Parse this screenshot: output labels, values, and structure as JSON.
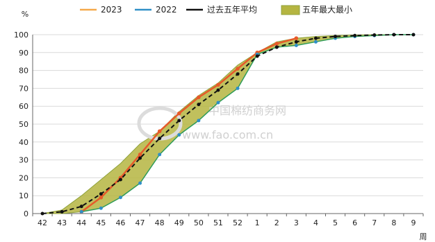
{
  "chart_data": {
    "type": "line",
    "y_unit": "%",
    "x_unit": "周",
    "categories": [
      "42",
      "43",
      "44",
      "45",
      "46",
      "47",
      "48",
      "49",
      "50",
      "51",
      "52",
      "1",
      "2",
      "3",
      "4",
      "5",
      "6",
      "7",
      "8",
      "9"
    ],
    "ylim": [
      0,
      100
    ],
    "y_ticks": [
      0,
      10,
      20,
      30,
      40,
      50,
      60,
      70,
      80,
      90,
      100
    ],
    "legend": {
      "placement": "top",
      "items": [
        {
          "label": "2023",
          "color": "#f5a94a",
          "kind": "line"
        },
        {
          "label": "2022",
          "color": "#2f8fc7",
          "kind": "line"
        },
        {
          "label": "过去五年平均",
          "color": "#111111",
          "kind": "line"
        },
        {
          "label": "五年最大最小",
          "color": "#b5b541",
          "kind": "band"
        }
      ]
    },
    "series": [
      {
        "name": "2023",
        "color": "#e65a2a",
        "values": [
          null,
          null,
          1,
          9,
          20,
          33,
          46,
          56,
          65,
          72,
          81,
          90,
          95,
          98,
          null,
          null,
          null,
          null,
          null,
          null
        ]
      },
      {
        "name": "2022",
        "color": "#2f8fc7",
        "values": [
          null,
          null,
          1,
          3,
          9,
          17,
          33,
          44,
          52,
          62,
          70,
          89,
          93,
          94,
          96,
          98,
          99,
          99.5,
          100,
          100
        ]
      },
      {
        "name": "过去五年平均",
        "color": "#111111",
        "values": [
          0,
          1,
          4,
          11,
          19,
          31,
          42,
          52,
          61,
          69,
          78,
          88,
          93,
          96,
          98,
          99,
          99.5,
          99.8,
          100,
          100
        ]
      }
    ],
    "band": {
      "name": "五年最大最小",
      "color": "#b5b541",
      "upper": [
        0,
        2,
        10,
        19,
        28,
        39,
        46,
        57,
        66,
        73,
        83,
        90,
        96,
        98,
        99,
        99.5,
        99.8,
        100,
        100,
        100
      ],
      "lower": [
        0,
        0,
        1,
        3,
        9,
        17,
        33,
        44,
        52,
        62,
        70,
        89,
        93,
        94,
        96,
        98,
        99,
        99.5,
        100,
        100
      ]
    },
    "grid": "horizontal"
  },
  "watermark": {
    "cn": "中国棉纺商务网",
    "url": "www.fao.com.cn"
  }
}
